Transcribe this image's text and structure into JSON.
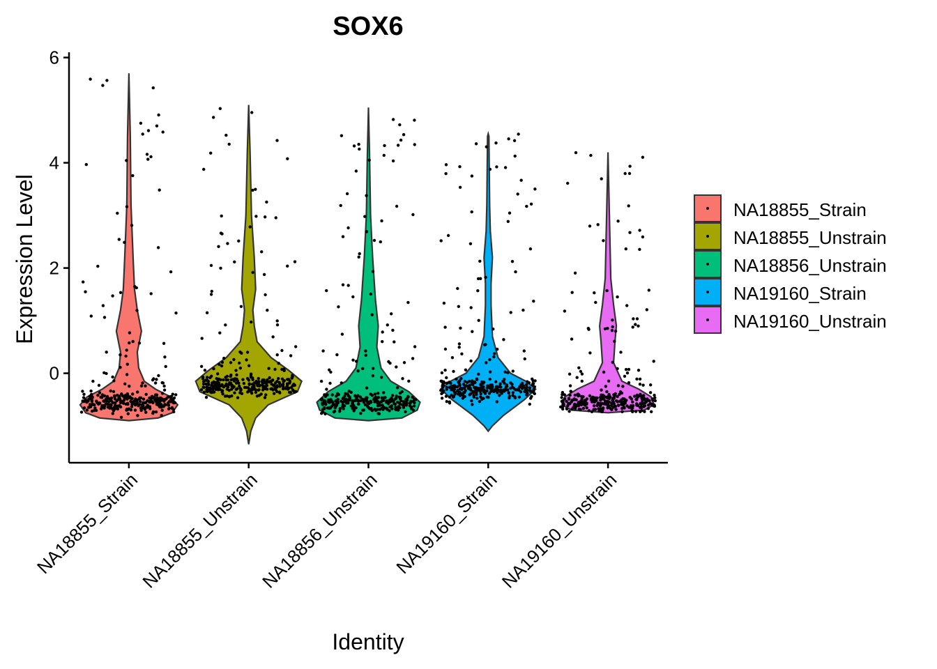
{
  "chart_data": {
    "type": "violin",
    "title": "SOX6",
    "xlabel": "Identity",
    "ylabel": "Expression Level",
    "ylim": [
      -1.7,
      6.1
    ],
    "yticks": [
      0,
      2,
      4,
      6
    ],
    "grid": false,
    "legend_position": "right",
    "categories": [
      "NA18855_Strain",
      "NA18855_Unstrain",
      "NA18856_Unstrain",
      "NA19160_Strain",
      "NA19160_Unstrain"
    ],
    "colors": [
      "#F8766D",
      "#A3A500",
      "#00BF7D",
      "#00B0F6",
      "#E76BF3"
    ],
    "series": [
      {
        "name": "NA18855_Strain",
        "min": -0.9,
        "max": 5.7,
        "mode": -0.55
      },
      {
        "name": "NA18855_Unstrain",
        "min": -1.35,
        "max": 5.1,
        "mode": -0.25
      },
      {
        "name": "NA18856_Unstrain",
        "min": -0.9,
        "max": 5.05,
        "mode": -0.55
      },
      {
        "name": "NA19160_Strain",
        "min": -1.1,
        "max": 4.55,
        "mode": -0.3
      },
      {
        "name": "NA19160_Unstrain",
        "min": -0.75,
        "max": 4.2,
        "mode": -0.55
      }
    ]
  }
}
